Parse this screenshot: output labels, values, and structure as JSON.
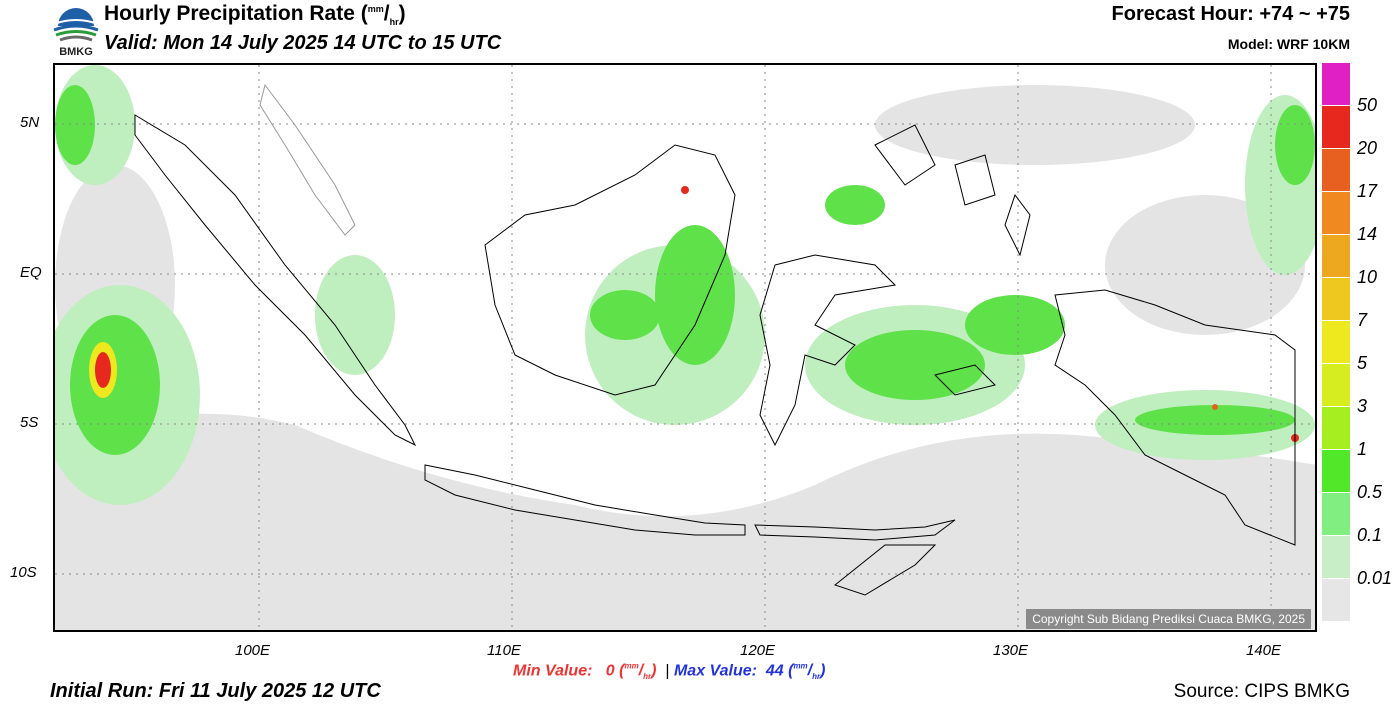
{
  "header": {
    "title": "Hourly Precipitation Rate (",
    "title_unit_sup": "mm",
    "title_unit_slash": "/",
    "title_unit_sub": "hr",
    "title_close": ")",
    "valid": "Valid: Mon 14 July 2025 14 UTC to 15 UTC",
    "forecast_hour": "Forecast Hour: +74 ~ +75",
    "model": "Model: WRF 10KM"
  },
  "logo": {
    "text": "BMKG"
  },
  "axes": {
    "lat_labels": [
      "5N",
      "EQ",
      "5S",
      "10S"
    ],
    "lon_labels": [
      "100E",
      "110E",
      "120E",
      "130E",
      "140E"
    ]
  },
  "colorbar": {
    "colors": [
      "#e01fc4",
      "#e6281f",
      "#e8601f",
      "#ee8a1f",
      "#eea81f",
      "#eec81f",
      "#eee81f",
      "#d6ee1f",
      "#a6ee1f",
      "#52e82a",
      "#80ee80",
      "#c8eec8",
      "#e6e6e6"
    ],
    "labels": [
      "50",
      "20",
      "17",
      "14",
      "10",
      "7",
      "5",
      "3",
      "1",
      "0.5",
      "0.1",
      "0.01"
    ]
  },
  "footer": {
    "min_label": "Min Value:",
    "min_value": "0",
    "max_label": "Max Value:",
    "max_value": "44",
    "unit_sup": "mm",
    "unit_sub": "hr",
    "separator": "|",
    "initial_run": "Initial Run: Fri 11 July 2025 12 UTC",
    "source": "Source: CIPS BMKG"
  },
  "copyright": "Copyright Sub Bidang Prediksi Cuaca BMKG, 2025"
}
